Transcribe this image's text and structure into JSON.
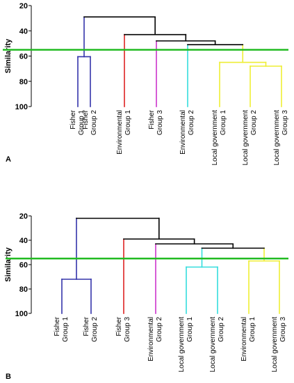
{
  "chart_data": [
    {
      "type": "dendrogram",
      "panel_label": "A",
      "ylabel": "Similarity",
      "ylim": [
        20,
        100
      ],
      "yticks": [
        20,
        40,
        60,
        80,
        100
      ],
      "threshold": 55,
      "threshold_color": "#22bb22",
      "leaves": [
        {
          "name": "Fisher Group 1",
          "lines": [
            "Fisher",
            "Group 1"
          ],
          "color": "#3333aa"
        },
        {
          "name": "Fisher Group 2",
          "lines": [
            "Fisher",
            "Group 2"
          ],
          "color": "#3333aa"
        },
        {
          "name": "Environmental Group 1",
          "lines": [
            "Environmental",
            "Group 1"
          ],
          "color": "#dd2222"
        },
        {
          "name": "Fisher Group 3",
          "lines": [
            "Fisher",
            "Group 3"
          ],
          "color": "#cc33cc"
        },
        {
          "name": "Environmental Group 2",
          "lines": [
            "Environmental",
            "Group 2"
          ],
          "color": "#33dddd"
        },
        {
          "name": "Local government Group 1",
          "lines": [
            "Local government",
            "Group 1"
          ],
          "color": "#eeee33"
        },
        {
          "name": "Local government Group 2",
          "lines": [
            "Local government",
            "Group 2"
          ],
          "color": "#eeee33"
        },
        {
          "name": "Local government Group 3",
          "lines": [
            "Local government",
            "Group 3"
          ],
          "color": "#eeee33"
        }
      ],
      "merges": [
        {
          "a": "L0",
          "b": "L1",
          "similarity": 60.5,
          "color": "#3333aa"
        },
        {
          "a": "L6",
          "b": "L7",
          "similarity": 68,
          "color": "#eeee33"
        },
        {
          "a": "L5",
          "b": "M1",
          "similarity": 65,
          "color": "#eeee33"
        },
        {
          "a": "L4",
          "b": "M2",
          "similarity": 51,
          "color": "#000000"
        },
        {
          "a": "L3",
          "b": "M3",
          "similarity": 48,
          "color": "#000000"
        },
        {
          "a": "L2",
          "b": "M4",
          "similarity": 43,
          "color": "#000000"
        },
        {
          "a": "M0",
          "b": "M5",
          "similarity": 29,
          "color": "#000000"
        }
      ]
    },
    {
      "type": "dendrogram",
      "panel_label": "B",
      "ylabel": "Similarity",
      "ylim": [
        20,
        100
      ],
      "yticks": [
        20,
        40,
        60,
        80,
        100
      ],
      "threshold": 55,
      "threshold_color": "#22bb22",
      "leaves": [
        {
          "name": "Fisher Group 1",
          "lines": [
            "Fisher",
            "Group 1"
          ],
          "color": "#3333aa"
        },
        {
          "name": "Fisher Group 2",
          "lines": [
            "Fisher",
            "Group 2"
          ],
          "color": "#3333aa"
        },
        {
          "name": "Fisher Group 3",
          "lines": [
            "Fisher",
            "Group 3"
          ],
          "color": "#dd2222"
        },
        {
          "name": "Environmental Group 2",
          "lines": [
            "Environmental",
            "Group 2"
          ],
          "color": "#cc33cc"
        },
        {
          "name": "Local government Group 1",
          "lines": [
            "Local government",
            "Group 1"
          ],
          "color": "#33dddd"
        },
        {
          "name": "Local government Group 2",
          "lines": [
            "Local government",
            "Group 2"
          ],
          "color": "#33dddd"
        },
        {
          "name": "Environmental Group 1",
          "lines": [
            "Environmental",
            "Group 1"
          ],
          "color": "#eeee33"
        },
        {
          "name": "Local government Group 3",
          "lines": [
            "Local government",
            "Group 3"
          ],
          "color": "#eeee33"
        }
      ],
      "merges": [
        {
          "a": "L0",
          "b": "L1",
          "similarity": 72,
          "color": "#3333aa"
        },
        {
          "a": "L4",
          "b": "L5",
          "similarity": 62,
          "color": "#33dddd"
        },
        {
          "a": "L6",
          "b": "L7",
          "similarity": 57,
          "color": "#eeee33"
        },
        {
          "a": "M1",
          "b": "M2",
          "similarity": 46.5,
          "color": "#000000"
        },
        {
          "a": "L3",
          "b": "M3",
          "similarity": 43,
          "color": "#000000"
        },
        {
          "a": "L2",
          "b": "M4",
          "similarity": 39,
          "color": "#000000"
        },
        {
          "a": "M0",
          "b": "M5",
          "similarity": 22,
          "color": "#000000"
        }
      ]
    }
  ]
}
